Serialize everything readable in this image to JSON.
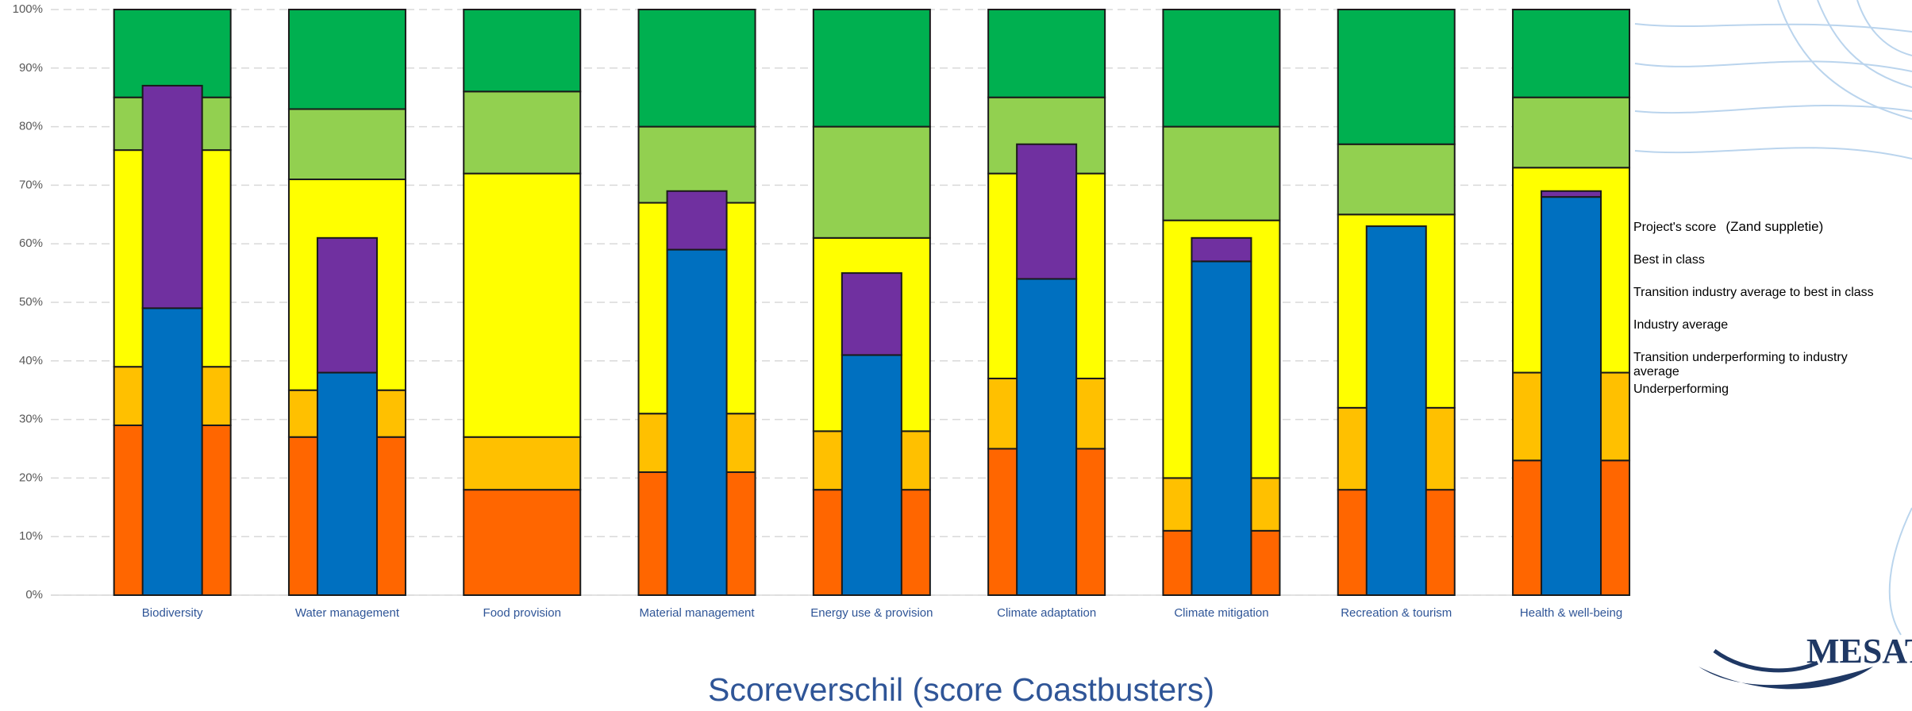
{
  "chart_data": {
    "type": "bar",
    "categories": [
      "Biodiversity",
      "Water management",
      "Food provision",
      "Material management",
      "Energy use & provision",
      "Climate adaptation",
      "Climate mitigation",
      "Recreation & tourism",
      "Health & well-being"
    ],
    "series": [
      {
        "name": "Project's score",
        "color": "#0070c0",
        "stack": "inner",
        "legend": "right",
        "values": [
          49,
          38,
          null,
          59,
          41,
          54,
          57,
          63,
          68
        ]
      },
      {
        "name": "Best in class",
        "color": "#00b050",
        "stack": "outer",
        "legend": "right",
        "values": [
          15,
          17,
          14,
          20,
          20,
          15,
          20,
          23,
          15
        ]
      },
      {
        "name": "Transition industry average to best in class",
        "color": "#92d050",
        "stack": "outer",
        "legend": "right",
        "values": [
          9,
          12,
          14,
          13,
          19,
          13,
          16,
          12,
          12
        ]
      },
      {
        "name": "Industry average",
        "color": "#ffff00",
        "stack": "outer",
        "legend": "right",
        "values": [
          37,
          36,
          45,
          36,
          33,
          35,
          44,
          33,
          35
        ]
      },
      {
        "name": "Transition underperforming to industry average",
        "color": "#ffc000",
        "stack": "outer",
        "legend": "right",
        "values": [
          10,
          8,
          9,
          10,
          10,
          12,
          9,
          14,
          15
        ]
      },
      {
        "name": "Underperforming",
        "color": "#ff6600",
        "stack": "outer",
        "legend": "right",
        "values": [
          29,
          27,
          18,
          21,
          18,
          25,
          11,
          18,
          23
        ]
      },
      {
        "name": "Scoreverschil (score Coastbusters)",
        "color": "#7030a0",
        "stack": "inner",
        "legend": "bottom",
        "values": [
          38,
          23,
          null,
          10,
          14,
          23,
          4,
          null,
          1
        ]
      }
    ],
    "annotation": "(Zand suppletie)",
    "ylim": [
      0,
      100
    ],
    "yticks": [
      {
        "value": 0,
        "label": "0%"
      },
      {
        "value": 10,
        "label": "10%"
      },
      {
        "value": 20,
        "label": "20%"
      },
      {
        "value": 30,
        "label": "30%"
      },
      {
        "value": 40,
        "label": "40%"
      },
      {
        "value": 50,
        "label": "50%"
      },
      {
        "value": 60,
        "label": "60%"
      },
      {
        "value": 70,
        "label": "70%"
      },
      {
        "value": 80,
        "label": "80%"
      },
      {
        "value": 90,
        "label": "90%"
      },
      {
        "value": 100,
        "label": "100%"
      }
    ],
    "grid": true
  }
}
